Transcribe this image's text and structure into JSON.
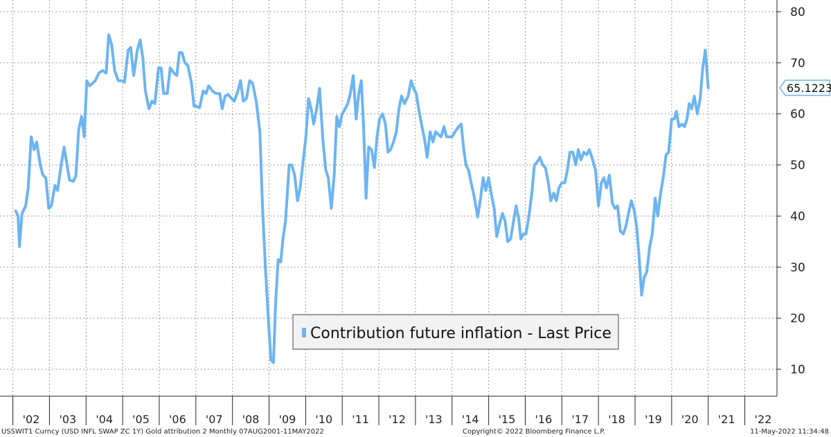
{
  "chart_data": {
    "type": "line",
    "title": "",
    "xlabel": "",
    "ylabel": "",
    "ylim": [
      5,
      85
    ],
    "yticks": [
      10,
      20,
      30,
      40,
      50,
      60,
      70,
      80
    ],
    "xlim": [
      2001.58,
      2022.45
    ],
    "xticks": [
      {
        "label": "'02",
        "year": 2002
      },
      {
        "label": "'03",
        "year": 2003
      },
      {
        "label": "'04",
        "year": 2004
      },
      {
        "label": "'05",
        "year": 2005
      },
      {
        "label": "'06",
        "year": 2006
      },
      {
        "label": "'07",
        "year": 2007
      },
      {
        "label": "'08",
        "year": 2008
      },
      {
        "label": "'09",
        "year": 2009
      },
      {
        "label": "'10",
        "year": 2010
      },
      {
        "label": "'11",
        "year": 2011
      },
      {
        "label": "'12",
        "year": 2012
      },
      {
        "label": "'13",
        "year": 2013
      },
      {
        "label": "'14",
        "year": 2014
      },
      {
        "label": "'15",
        "year": 2015
      },
      {
        "label": "'16",
        "year": 2016
      },
      {
        "label": "'17",
        "year": 2017
      },
      {
        "label": "'18",
        "year": 2018
      },
      {
        "label": "'19",
        "year": 2019
      },
      {
        "label": "'20",
        "year": 2020
      },
      {
        "label": "'21",
        "year": 2021
      },
      {
        "label": "'22",
        "year": 2022
      }
    ],
    "grid": true,
    "legend_position": "bottom-center",
    "series": [
      {
        "name": "Contribution future inflation - Last Price",
        "color": "#6cb4f2",
        "last_value_label": "65.1223",
        "points": [
          [
            2001.58,
            41.0
          ],
          [
            2001.64,
            40.0
          ],
          [
            2001.68,
            34.0
          ],
          [
            2001.75,
            40.5
          ],
          [
            2001.85,
            42.0
          ],
          [
            2001.92,
            45.5
          ],
          [
            2002.0,
            55.5
          ],
          [
            2002.08,
            53.0
          ],
          [
            2002.15,
            54.5
          ],
          [
            2002.25,
            50.0
          ],
          [
            2002.32,
            48.0
          ],
          [
            2002.4,
            47.5
          ],
          [
            2002.48,
            41.5
          ],
          [
            2002.55,
            42.0
          ],
          [
            2002.65,
            46.0
          ],
          [
            2002.72,
            45.0
          ],
          [
            2002.82,
            50.0
          ],
          [
            2002.9,
            53.5
          ],
          [
            2002.98,
            50.0
          ],
          [
            2003.05,
            47.0
          ],
          [
            2003.15,
            46.8
          ],
          [
            2003.22,
            47.8
          ],
          [
            2003.3,
            57.0
          ],
          [
            2003.38,
            59.5
          ],
          [
            2003.45,
            55.5
          ],
          [
            2003.52,
            66.5
          ],
          [
            2003.6,
            65.5
          ],
          [
            2003.68,
            66.0
          ],
          [
            2003.75,
            66.5
          ],
          [
            2003.85,
            68.0
          ],
          [
            2003.95,
            68.5
          ],
          [
            2004.05,
            68.0
          ],
          [
            2004.12,
            75.5
          ],
          [
            2004.2,
            73.5
          ],
          [
            2004.28,
            68.5
          ],
          [
            2004.38,
            66.5
          ],
          [
            2004.48,
            66.5
          ],
          [
            2004.55,
            66.2
          ],
          [
            2004.65,
            72.5
          ],
          [
            2004.72,
            73.0
          ],
          [
            2004.8,
            67.5
          ],
          [
            2004.9,
            72.5
          ],
          [
            2004.98,
            74.5
          ],
          [
            2005.05,
            71.0
          ],
          [
            2005.12,
            64.5
          ],
          [
            2005.22,
            61.0
          ],
          [
            2005.3,
            62.5
          ],
          [
            2005.38,
            62.0
          ],
          [
            2005.48,
            69.0
          ],
          [
            2005.55,
            69.0
          ],
          [
            2005.62,
            64.0
          ],
          [
            2005.72,
            64.0
          ],
          [
            2005.8,
            69.0
          ],
          [
            2005.9,
            68.0
          ],
          [
            2005.98,
            67.5
          ],
          [
            2006.05,
            72.0
          ],
          [
            2006.12,
            72.0
          ],
          [
            2006.2,
            70.0
          ],
          [
            2006.28,
            69.5
          ],
          [
            2006.38,
            66.0
          ],
          [
            2006.45,
            61.5
          ],
          [
            2006.52,
            61.5
          ],
          [
            2006.6,
            61.2
          ],
          [
            2006.7,
            64.5
          ],
          [
            2006.78,
            64.0
          ],
          [
            2006.85,
            65.5
          ],
          [
            2006.95,
            64.5
          ],
          [
            2007.05,
            64.0
          ],
          [
            2007.15,
            64.0
          ],
          [
            2007.22,
            61.0
          ],
          [
            2007.3,
            63.5
          ],
          [
            2007.38,
            63.8
          ],
          [
            2007.48,
            63.0
          ],
          [
            2007.55,
            62.5
          ],
          [
            2007.65,
            64.5
          ],
          [
            2007.72,
            66.5
          ],
          [
            2007.8,
            62.5
          ],
          [
            2007.88,
            63.0
          ],
          [
            2007.97,
            66.5
          ],
          [
            2008.05,
            66.0
          ],
          [
            2008.15,
            62.5
          ],
          [
            2008.25,
            56.5
          ],
          [
            2008.32,
            42.0
          ],
          [
            2008.4,
            30.0
          ],
          [
            2008.48,
            20.0
          ],
          [
            2008.55,
            11.8
          ],
          [
            2008.62,
            11.3
          ],
          [
            2008.68,
            23.0
          ],
          [
            2008.75,
            31.5
          ],
          [
            2008.82,
            31.0
          ],
          [
            2008.88,
            35.5
          ],
          [
            2008.95,
            39.0
          ],
          [
            2009.05,
            50.0
          ],
          [
            2009.12,
            50.0
          ],
          [
            2009.2,
            48.0
          ],
          [
            2009.28,
            43.0
          ],
          [
            2009.35,
            45.5
          ],
          [
            2009.42,
            50.0
          ],
          [
            2009.5,
            55.0
          ],
          [
            2009.58,
            63.0
          ],
          [
            2009.65,
            61.0
          ],
          [
            2009.72,
            58.0
          ],
          [
            2009.8,
            61.0
          ],
          [
            2009.88,
            65.0
          ],
          [
            2009.97,
            55.0
          ],
          [
            2010.05,
            49.0
          ],
          [
            2010.12,
            47.5
          ],
          [
            2010.2,
            41.5
          ],
          [
            2010.28,
            48.0
          ],
          [
            2010.35,
            59.5
          ],
          [
            2010.42,
            57.5
          ],
          [
            2010.5,
            60.0
          ],
          [
            2010.58,
            61.0
          ],
          [
            2010.65,
            62.0
          ],
          [
            2010.72,
            64.0
          ],
          [
            2010.8,
            67.5
          ],
          [
            2010.88,
            59.0
          ],
          [
            2010.95,
            64.0
          ],
          [
            2011.02,
            66.5
          ],
          [
            2011.08,
            58.0
          ],
          [
            2011.15,
            43.5
          ],
          [
            2011.22,
            53.5
          ],
          [
            2011.3,
            53.0
          ],
          [
            2011.38,
            49.5
          ],
          [
            2011.45,
            55.5
          ],
          [
            2011.52,
            59.0
          ],
          [
            2011.6,
            60.0
          ],
          [
            2011.68,
            58.0
          ],
          [
            2011.75,
            52.5
          ],
          [
            2011.82,
            53.0
          ],
          [
            2011.9,
            54.5
          ],
          [
            2011.98,
            56.5
          ],
          [
            2012.05,
            61.0
          ],
          [
            2012.12,
            63.5
          ],
          [
            2012.2,
            62.0
          ],
          [
            2012.3,
            63.5
          ],
          [
            2012.38,
            66.5
          ],
          [
            2012.45,
            65.0
          ],
          [
            2012.52,
            64.0
          ],
          [
            2012.6,
            60.5
          ],
          [
            2012.68,
            57.5
          ],
          [
            2012.75,
            55.0
          ],
          [
            2012.82,
            51.5
          ],
          [
            2012.9,
            56.5
          ],
          [
            2012.98,
            54.5
          ],
          [
            2013.05,
            56.5
          ],
          [
            2013.12,
            56.0
          ],
          [
            2013.2,
            55.5
          ],
          [
            2013.28,
            57.5
          ],
          [
            2013.35,
            55.5
          ],
          [
            2013.42,
            55.5
          ],
          [
            2013.5,
            55.5
          ],
          [
            2013.58,
            56.5
          ],
          [
            2013.68,
            57.5
          ],
          [
            2013.75,
            58.0
          ],
          [
            2013.82,
            53.0
          ],
          [
            2013.88,
            50.0
          ],
          [
            2013.95,
            49.0
          ],
          [
            2014.02,
            46.5
          ],
          [
            2014.1,
            44.0
          ],
          [
            2014.2,
            39.8
          ],
          [
            2014.28,
            43.5
          ],
          [
            2014.35,
            47.5
          ],
          [
            2014.42,
            45.0
          ],
          [
            2014.5,
            47.5
          ],
          [
            2014.58,
            44.0
          ],
          [
            2014.65,
            41.5
          ],
          [
            2014.72,
            36.0
          ],
          [
            2014.8,
            38.5
          ],
          [
            2014.88,
            40.5
          ],
          [
            2014.95,
            39.0
          ],
          [
            2015.02,
            35.0
          ],
          [
            2015.1,
            35.5
          ],
          [
            2015.18,
            39.0
          ],
          [
            2015.25,
            42.0
          ],
          [
            2015.32,
            39.5
          ],
          [
            2015.38,
            35.5
          ],
          [
            2015.45,
            36.5
          ],
          [
            2015.52,
            36.5
          ],
          [
            2015.6,
            40.0
          ],
          [
            2015.68,
            44.5
          ],
          [
            2015.75,
            50.0
          ],
          [
            2015.82,
            50.5
          ],
          [
            2015.9,
            51.5
          ],
          [
            2015.98,
            50.0
          ],
          [
            2016.05,
            49.5
          ],
          [
            2016.12,
            47.0
          ],
          [
            2016.2,
            43.0
          ],
          [
            2016.28,
            44.5
          ],
          [
            2016.35,
            43.0
          ],
          [
            2016.42,
            45.5
          ],
          [
            2016.5,
            46.5
          ],
          [
            2016.58,
            46.5
          ],
          [
            2016.65,
            49.0
          ],
          [
            2016.72,
            52.5
          ],
          [
            2016.8,
            52.5
          ],
          [
            2016.88,
            50.0
          ],
          [
            2016.95,
            53.0
          ],
          [
            2017.02,
            51.0
          ],
          [
            2017.1,
            52.5
          ],
          [
            2017.18,
            52.0
          ],
          [
            2017.25,
            53.0
          ],
          [
            2017.32,
            51.5
          ],
          [
            2017.42,
            49.0
          ],
          [
            2017.5,
            42.0
          ],
          [
            2017.58,
            46.5
          ],
          [
            2017.65,
            47.5
          ],
          [
            2017.72,
            45.5
          ],
          [
            2017.8,
            48.0
          ],
          [
            2017.88,
            42.5
          ],
          [
            2017.95,
            41.5
          ],
          [
            2018.02,
            42.0
          ],
          [
            2018.1,
            37.0
          ],
          [
            2018.18,
            36.5
          ],
          [
            2018.25,
            38.0
          ],
          [
            2018.32,
            40.5
          ],
          [
            2018.4,
            43.0
          ],
          [
            2018.48,
            41.0
          ],
          [
            2018.55,
            37.5
          ],
          [
            2018.62,
            31.0
          ],
          [
            2018.68,
            24.5
          ],
          [
            2018.75,
            28.0
          ],
          [
            2018.82,
            29.0
          ],
          [
            2018.9,
            34.0
          ],
          [
            2018.97,
            36.5
          ],
          [
            2019.05,
            43.5
          ],
          [
            2019.12,
            40.0
          ],
          [
            2019.2,
            44.5
          ],
          [
            2019.28,
            48.0
          ],
          [
            2019.35,
            52.0
          ],
          [
            2019.42,
            52.5
          ],
          [
            2019.5,
            59.0
          ],
          [
            2019.57,
            59.0
          ],
          [
            2019.63,
            60.5
          ],
          [
            2019.7,
            57.5
          ],
          [
            2019.78,
            58.0
          ],
          [
            2019.85,
            57.5
          ],
          [
            2019.92,
            59.0
          ],
          [
            2019.98,
            62.0
          ],
          [
            2020.05,
            61.0
          ],
          [
            2020.12,
            63.5
          ],
          [
            2020.2,
            60.0
          ],
          [
            2020.28,
            63.0
          ],
          [
            2020.35,
            69.0
          ],
          [
            2020.42,
            72.5
          ],
          [
            2020.5,
            65.1
          ]
        ]
      }
    ],
    "footer_left": "USSWIT1 Curncy (USD INFL SWAP ZC 1Y) Gold attribution 2  Monthly 07AUG2001-11MAY2022",
    "footer_center": "Copyright© 2022 Bloomberg Finance L.P.",
    "footer_right": "11-May-2022 11:34:48"
  }
}
